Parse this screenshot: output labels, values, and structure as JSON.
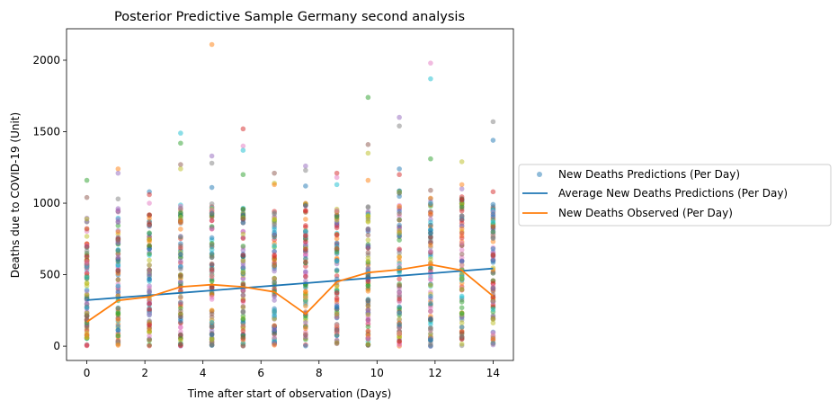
{
  "chart_data": {
    "type": "scatter",
    "title": "Posterior Predictive Sample Germany second analysis",
    "xlabel": "Time after start of observation (Days)",
    "ylabel": "Deaths due to COVID-19 (Unit)",
    "xlim": [
      -0.7,
      14.7
    ],
    "ylim": [
      -100,
      2220
    ],
    "xticks": [
      0,
      2,
      4,
      6,
      8,
      10,
      12,
      14
    ],
    "yticks": [
      0,
      500,
      1000,
      1500,
      2000
    ],
    "legend_position": "right-outside",
    "grid": false,
    "days": [
      0,
      1.077,
      2.154,
      3.231,
      4.308,
      5.385,
      6.462,
      7.538,
      8.615,
      9.692,
      10.769,
      11.846,
      12.923,
      14.0
    ],
    "series": [
      {
        "name": "New Deaths Predictions (Per Day)",
        "type": "scatter",
        "color": "#1f77b4",
        "point_colors": [
          "#1f77b4",
          "#ff7f0e",
          "#2ca02c",
          "#d62728",
          "#9467bd",
          "#8c564b",
          "#e377c2",
          "#7f7f7f",
          "#bcbd22",
          "#17becf"
        ],
        "alpha": 0.5,
        "note_outliers": "highest sampled values per day",
        "outliers": [
          {
            "x": 0,
            "y": 1160
          },
          {
            "x": 0,
            "y": 1040
          },
          {
            "x": 0,
            "y": 890
          },
          {
            "x": 1.077,
            "y": 1240
          },
          {
            "x": 1.077,
            "y": 1210
          },
          {
            "x": 1.077,
            "y": 1030
          },
          {
            "x": 2.154,
            "y": 1080
          },
          {
            "x": 2.154,
            "y": 1060
          },
          {
            "x": 2.154,
            "y": 1000
          },
          {
            "x": 3.231,
            "y": 1490
          },
          {
            "x": 3.231,
            "y": 1420
          },
          {
            "x": 3.231,
            "y": 1270
          },
          {
            "x": 3.231,
            "y": 1240
          },
          {
            "x": 4.308,
            "y": 2110
          },
          {
            "x": 4.308,
            "y": 1330
          },
          {
            "x": 4.308,
            "y": 1280
          },
          {
            "x": 4.308,
            "y": 1110
          },
          {
            "x": 5.385,
            "y": 1520
          },
          {
            "x": 5.385,
            "y": 1400
          },
          {
            "x": 5.385,
            "y": 1370
          },
          {
            "x": 5.385,
            "y": 1200
          },
          {
            "x": 6.462,
            "y": 1210
          },
          {
            "x": 6.462,
            "y": 1140
          },
          {
            "x": 6.462,
            "y": 1130
          },
          {
            "x": 7.538,
            "y": 1260
          },
          {
            "x": 7.538,
            "y": 1230
          },
          {
            "x": 7.538,
            "y": 1120
          },
          {
            "x": 8.615,
            "y": 1210
          },
          {
            "x": 8.615,
            "y": 1180
          },
          {
            "x": 8.615,
            "y": 1130
          },
          {
            "x": 9.692,
            "y": 1740
          },
          {
            "x": 9.692,
            "y": 1410
          },
          {
            "x": 9.692,
            "y": 1350
          },
          {
            "x": 9.692,
            "y": 1160
          },
          {
            "x": 10.769,
            "y": 1600
          },
          {
            "x": 10.769,
            "y": 1540
          },
          {
            "x": 10.769,
            "y": 1240
          },
          {
            "x": 10.769,
            "y": 1200
          },
          {
            "x": 11.846,
            "y": 1980
          },
          {
            "x": 11.846,
            "y": 1870
          },
          {
            "x": 11.846,
            "y": 1310
          },
          {
            "x": 11.846,
            "y": 1090
          },
          {
            "x": 12.923,
            "y": 1290
          },
          {
            "x": 12.923,
            "y": 1130
          },
          {
            "x": 12.923,
            "y": 1100
          },
          {
            "x": 14.0,
            "y": 1570
          },
          {
            "x": 14.0,
            "y": 1440
          },
          {
            "x": 14.0,
            "y": 1080
          }
        ],
        "bulk_max": [
          900,
          970,
          960,
          1000,
          1000,
          1000,
          960,
          1000,
          980,
          1000,
          1100,
          1050,
          1050,
          1000
        ]
      },
      {
        "name": "Average New Deaths Predictions (Per Day)",
        "type": "line",
        "color": "#1f77b4",
        "values": [
          322,
          339,
          356,
          373,
          390,
          407,
          424,
          441,
          458,
          475,
          492,
          509,
          526,
          543
        ]
      },
      {
        "name": "New Deaths Observed (Per Day)",
        "type": "line",
        "color": "#ff7f0e",
        "values": [
          170,
          320,
          345,
          415,
          430,
          415,
          380,
          225,
          450,
          515,
          535,
          570,
          530,
          350
        ]
      }
    ]
  }
}
